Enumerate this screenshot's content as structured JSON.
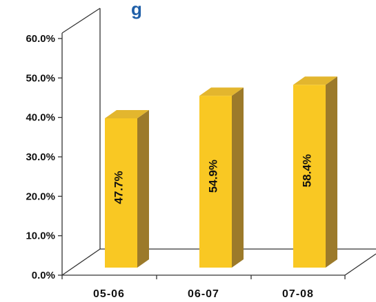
{
  "title_fragment": "g",
  "colors": {
    "bar_front": "#F9C823",
    "bar_side": "#9C7A2A",
    "bar_top": "#E3B62E",
    "axis": "#333333",
    "title": "#1F5FA8"
  },
  "chart_data": {
    "type": "bar",
    "categories": [
      "05-06",
      "06-07",
      "07-08"
    ],
    "values": [
      47.7,
      54.9,
      58.4
    ],
    "data_labels": [
      "47.7%",
      "54.9%",
      "58.4%"
    ],
    "ylim": [
      0,
      60
    ],
    "yticks": [
      "0.0%",
      "10.0%",
      "20.0%",
      "30.0%",
      "40.0%",
      "50.0%",
      "60.0%"
    ],
    "grid": false,
    "legend": "none",
    "style": "3d"
  }
}
